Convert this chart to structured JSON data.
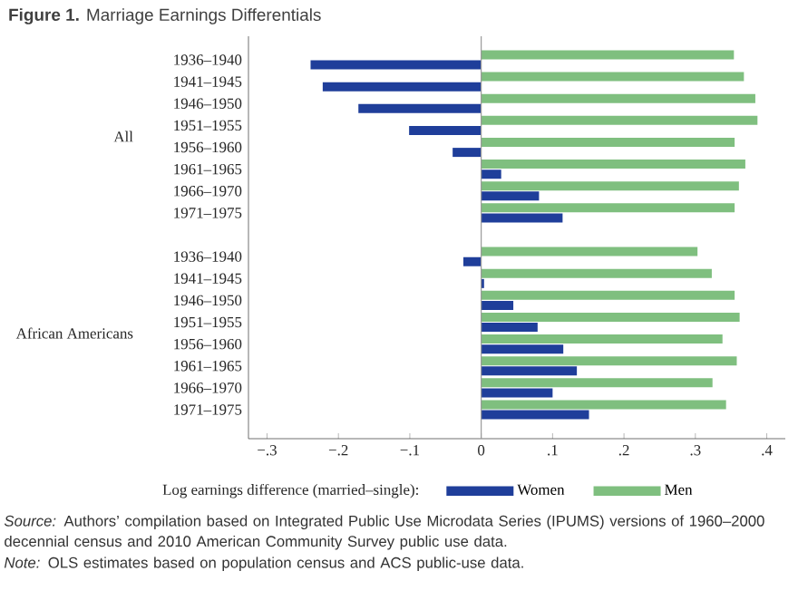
{
  "chart_data": {
    "type": "bar",
    "orientation": "horizontal",
    "title": "**Figure 1.** Marriage Earnings Differentials",
    "xlabel": "Log earnings difference (married–single):",
    "categories": [
      "1936–1940",
      "1941–1945",
      "1946–1950",
      "1951–1955",
      "1956–1960",
      "1961–1965",
      "1966–1970",
      "1971–1975",
      null,
      "1936–1940",
      "1941–1945",
      "1946–1950",
      "1951–1955",
      "1956–1960",
      "1961–1965",
      "1966–1970",
      "1971–1975"
    ],
    "series": [
      {
        "name": "Women",
        "color": "#1f3e9a",
        "values": [
          -0.239,
          -0.222,
          -0.172,
          -0.101,
          -0.04,
          0.028,
          0.081,
          0.114,
          null,
          -0.025,
          0.004,
          0.045,
          0.079,
          0.115,
          0.134,
          0.1,
          0.151
        ]
      },
      {
        "name": "Men",
        "color": "#7fbf7f",
        "values": [
          0.354,
          0.368,
          0.384,
          0.387,
          0.355,
          0.37,
          0.361,
          0.355,
          null,
          0.303,
          0.323,
          0.355,
          0.362,
          0.338,
          0.358,
          0.324,
          0.343
        ]
      }
    ],
    "xlim": [
      -0.326,
      0.426
    ],
    "xticks": [
      {
        "value": -0.3,
        "label": "−.3"
      },
      {
        "value": -0.2,
        "label": "−.2"
      },
      {
        "value": -0.1,
        "label": "−.1"
      },
      0,
      {
        "value": 0.1,
        "label": ".1"
      },
      {
        "value": 0.2,
        "label": ".2"
      },
      {
        "value": 0.3,
        "label": ".3"
      },
      {
        "value": 0.4,
        "label": ".4"
      }
    ],
    "ref_lines": [
      {
        "axis": "x",
        "value": 0,
        "color": "#999999"
      }
    ],
    "legend": "bottom",
    "annotations": [
      "All",
      "African Americans",
      "*Source:* Authors’ compilation based on Integrated Public Use Microdata Series (IPUMS) versions of 1960–2000 decennial census and 2010 American Community Survey public use data.",
      "*Note:* OLS estimates based on population census and ACS public-use data."
    ]
  }
}
